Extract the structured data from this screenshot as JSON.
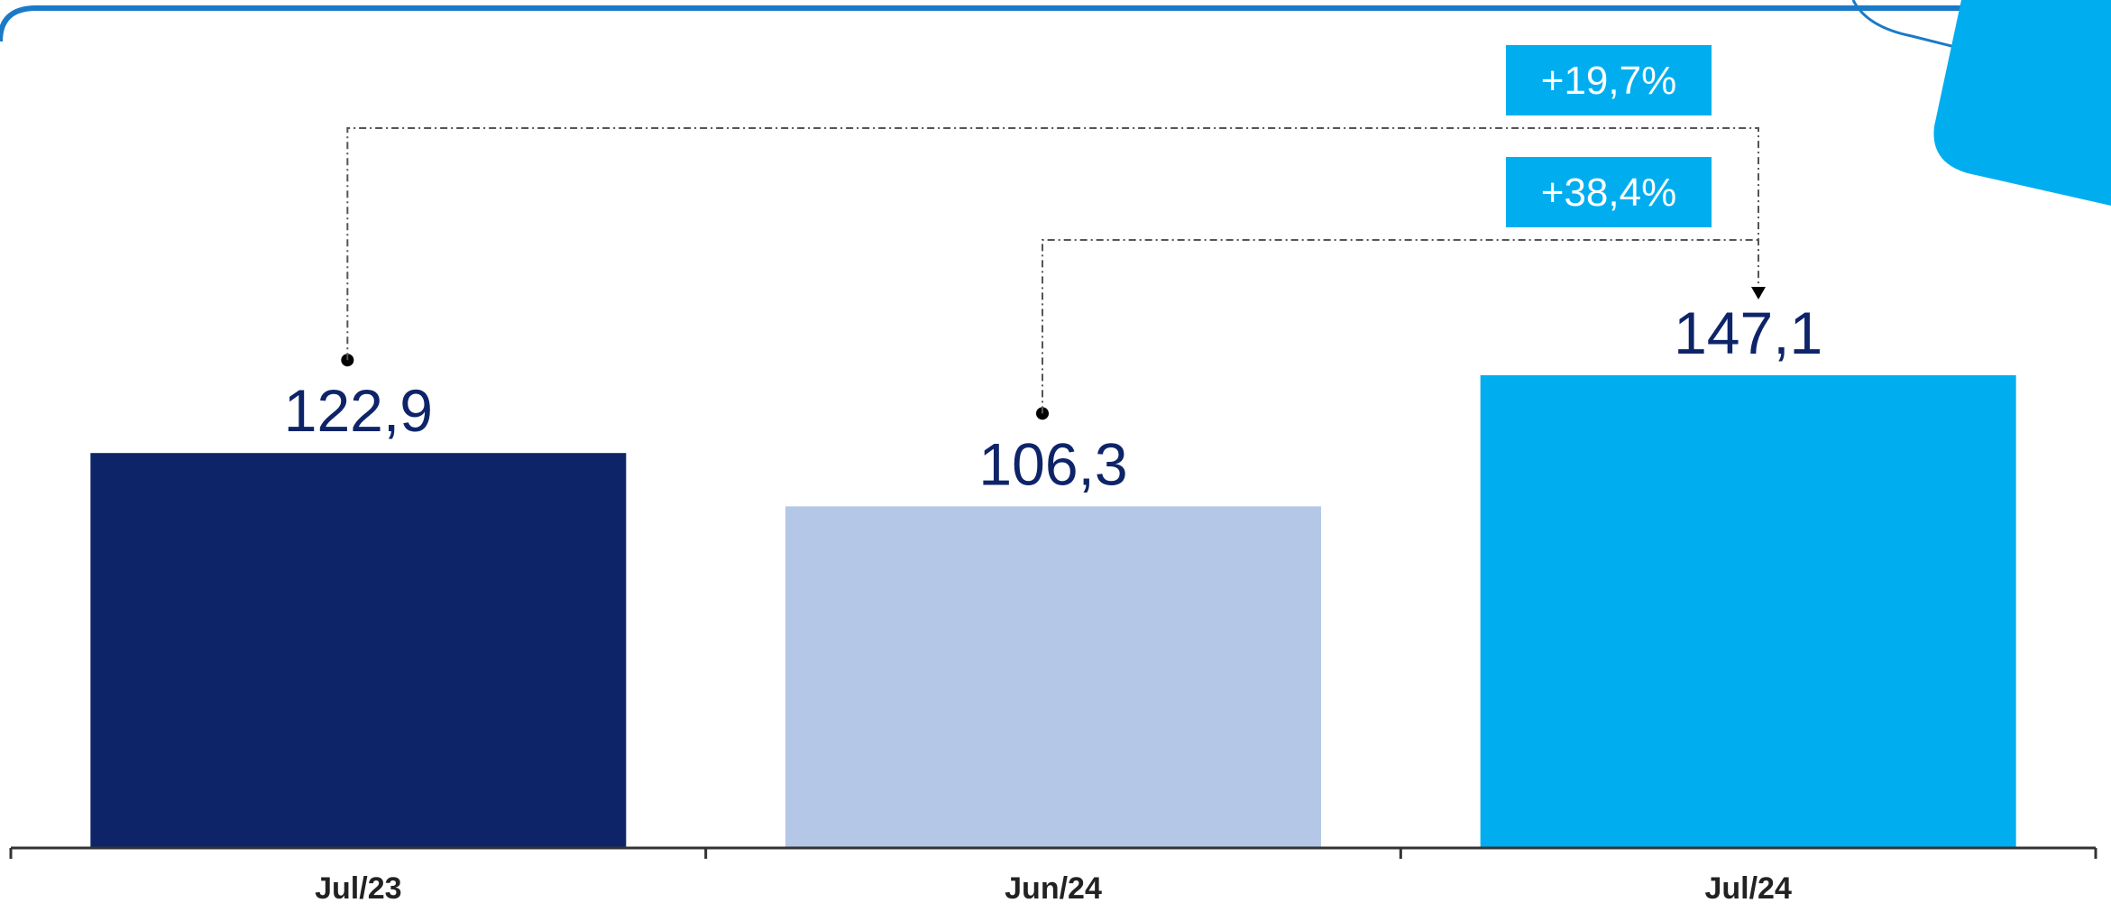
{
  "chart_data": {
    "type": "bar",
    "categories": [
      "Jul/23",
      "Jun/24",
      "Jul/24"
    ],
    "values": [
      122.9,
      106.3,
      147.1
    ],
    "value_labels": [
      "122,9",
      "106,3",
      "147,1"
    ],
    "bar_colors": [
      "#0e2469",
      "#b4c7e7",
      "#00aeef"
    ],
    "ylim": [
      0,
      147.1
    ],
    "grid": false,
    "legend": "none",
    "comparisons": [
      {
        "from": "Jul/23",
        "to": "Jul/24",
        "label": "+19,7%"
      },
      {
        "from": "Jun/24",
        "to": "Jul/24",
        "label": "+38,4%"
      }
    ]
  },
  "colors": {
    "accent": "#00aeef",
    "frame": "#1a7ac8",
    "value_text": "#0e2469",
    "axis": "#333333"
  }
}
